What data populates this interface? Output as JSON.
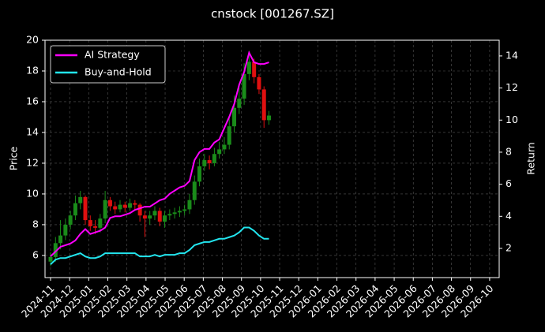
{
  "chart_data": {
    "type": "candlestick",
    "title": "cnstock [001267.SZ]",
    "ylabel": "Price",
    "y2label": "Return",
    "x": [
      0,
      0.26,
      0.52,
      0.78,
      1.04,
      1.3,
      1.56,
      1.82,
      2.08,
      2.34,
      2.6,
      2.86,
      3.12,
      3.38,
      3.64,
      3.9,
      4.16,
      4.42,
      4.68,
      4.94,
      5.2,
      5.46,
      5.72,
      5.98,
      6.24,
      6.5,
      6.76,
      7.02,
      7.28,
      7.54,
      7.8,
      8.06,
      8.32,
      8.58,
      8.84,
      9.1,
      9.36,
      9.62,
      9.88,
      10.14,
      10.4,
      10.66,
      10.92,
      11.18,
      11.44
    ],
    "open": [
      5.6,
      5.9,
      6.8,
      7.3,
      8.0,
      8.6,
      9.4,
      9.8,
      8.3,
      7.9,
      7.8,
      8.4,
      9.6,
      9.2,
      9.0,
      9.3,
      9.1,
      9.4,
      9.3,
      8.6,
      8.4,
      8.6,
      8.9,
      8.2,
      8.6,
      8.7,
      8.8,
      8.9,
      9.0,
      9.6,
      10.8,
      11.8,
      12.2,
      12.0,
      12.6,
      12.9,
      13.2,
      14.4,
      15.6,
      16.2,
      17.8,
      18.6,
      17.6,
      16.8,
      14.8
    ],
    "high": [
      6.2,
      7.2,
      8.3,
      8.4,
      8.9,
      9.9,
      10.2,
      9.9,
      8.6,
      8.3,
      8.7,
      10.2,
      9.8,
      9.5,
      9.6,
      9.5,
      9.7,
      9.6,
      9.4,
      8.9,
      8.9,
      9.2,
      9.1,
      8.9,
      9.0,
      9.1,
      9.2,
      9.3,
      10.0,
      11.2,
      12.3,
      12.6,
      12.5,
      13.0,
      13.4,
      13.7,
      15.0,
      16.4,
      17.0,
      18.5,
      19.3,
      18.8,
      17.8,
      17.0,
      15.4
    ],
    "low": [
      5.3,
      5.6,
      6.4,
      7.0,
      7.7,
      8.3,
      9.0,
      8.0,
      7.6,
      7.4,
      7.5,
      8.1,
      8.9,
      8.7,
      8.8,
      8.8,
      8.9,
      9.0,
      8.2,
      7.2,
      8.0,
      8.3,
      7.9,
      7.8,
      8.3,
      8.4,
      8.5,
      8.6,
      8.7,
      9.3,
      10.5,
      11.5,
      11.6,
      11.8,
      12.3,
      12.6,
      12.9,
      14.0,
      15.2,
      15.8,
      17.4,
      17.2,
      16.5,
      14.3,
      14.5
    ],
    "close": [
      5.9,
      6.8,
      7.3,
      8.0,
      8.6,
      9.4,
      9.8,
      8.3,
      7.9,
      7.8,
      8.4,
      9.6,
      9.2,
      9.0,
      9.3,
      9.1,
      9.4,
      9.3,
      8.6,
      8.4,
      8.6,
      8.9,
      8.2,
      8.6,
      8.7,
      8.8,
      8.9,
      9.0,
      9.6,
      10.8,
      11.8,
      12.2,
      12.0,
      12.6,
      12.9,
      13.2,
      14.4,
      15.6,
      16.2,
      17.8,
      18.6,
      17.6,
      16.8,
      14.8,
      15.1
    ],
    "up_color": "#1a8c1a",
    "down_color": "#e01010",
    "series": [
      {
        "name": "AI Strategy",
        "color": "#ff00ff",
        "axis": "y2",
        "values": [
          1.5,
          1.8,
          2.1,
          2.2,
          2.3,
          2.5,
          2.9,
          3.2,
          2.9,
          3.0,
          3.1,
          3.3,
          3.9,
          4.0,
          4.0,
          4.1,
          4.2,
          4.4,
          4.5,
          4.6,
          4.6,
          4.8,
          5.0,
          5.1,
          5.4,
          5.6,
          5.8,
          5.9,
          6.2,
          7.5,
          8.0,
          8.2,
          8.2,
          8.6,
          8.8,
          9.5,
          10.2,
          11.0,
          12.2,
          13.0,
          14.2,
          13.6,
          13.5,
          13.5,
          13.6
        ]
      },
      {
        "name": "Buy-and-Hold",
        "color": "#22e5ee",
        "axis": "y2",
        "values": [
          1.0,
          1.3,
          1.4,
          1.4,
          1.5,
          1.6,
          1.7,
          1.5,
          1.4,
          1.4,
          1.5,
          1.7,
          1.7,
          1.7,
          1.7,
          1.7,
          1.7,
          1.7,
          1.5,
          1.5,
          1.5,
          1.6,
          1.5,
          1.6,
          1.6,
          1.6,
          1.7,
          1.7,
          1.9,
          2.2,
          2.3,
          2.4,
          2.4,
          2.5,
          2.6,
          2.6,
          2.7,
          2.8,
          3.0,
          3.3,
          3.3,
          3.1,
          2.8,
          2.6,
          2.6
        ]
      }
    ],
    "xlim": [
      -0.29,
      23.5
    ],
    "xticks": [
      {
        "value": 0,
        "label": "2024-11"
      },
      {
        "value": 1,
        "label": "2024-12"
      },
      {
        "value": 2,
        "label": "2025-01"
      },
      {
        "value": 3,
        "label": "2025-02"
      },
      {
        "value": 4,
        "label": "2025-03"
      },
      {
        "value": 5,
        "label": "2025-04"
      },
      {
        "value": 6,
        "label": "2025-05"
      },
      {
        "value": 7,
        "label": "2025-06"
      },
      {
        "value": 8,
        "label": "2025-07"
      },
      {
        "value": 9,
        "label": "2025-08"
      },
      {
        "value": 10,
        "label": "2025-09"
      },
      {
        "value": 11,
        "label": "2025-10"
      },
      {
        "value": 12,
        "label": "2025-11"
      },
      {
        "value": 13,
        "label": "2025-12"
      },
      {
        "value": 14,
        "label": "2026-01"
      },
      {
        "value": 15,
        "label": "2026-02"
      },
      {
        "value": 16,
        "label": "2026-03"
      },
      {
        "value": 17,
        "label": "2026-04"
      },
      {
        "value": 18,
        "label": "2026-05"
      },
      {
        "value": 19,
        "label": "2026-06"
      },
      {
        "value": 20,
        "label": "2026-07"
      },
      {
        "value": 21,
        "label": "2026-08"
      },
      {
        "value": 22,
        "label": "2026-09"
      },
      {
        "value": 23,
        "label": "2026-10"
      }
    ],
    "ylim": [
      4.56,
      20
    ],
    "yticks": [
      6,
      8,
      10,
      12,
      14,
      16,
      18,
      20
    ],
    "y2lim": [
      0.18,
      14.98
    ],
    "y2ticks": [
      2,
      4,
      6,
      8,
      10,
      12,
      14
    ],
    "grid": true,
    "legend": "upper left"
  }
}
